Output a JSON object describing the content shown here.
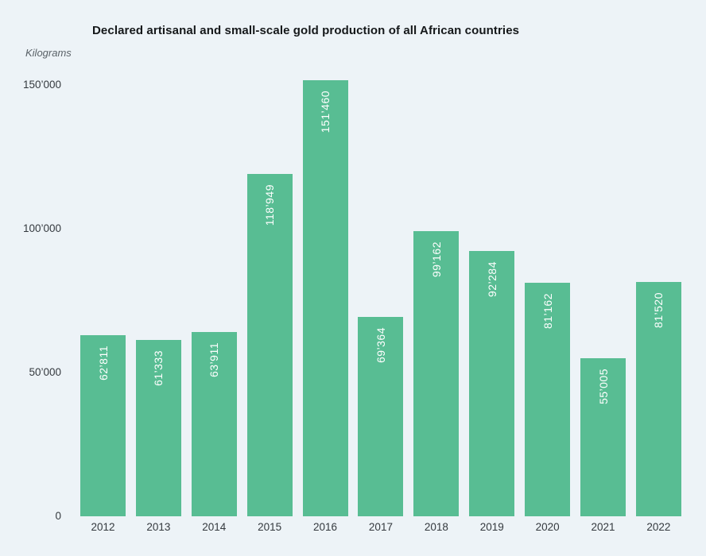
{
  "header": {
    "title": "Declared artisanal and small-scale gold production of all African countries",
    "unit_label": "Kilograms"
  },
  "colors": {
    "bar": "#58bd93",
    "background": "#edf3f7",
    "bar_label_text": "#ffffff",
    "axis_text": "#34393e",
    "title_text": "#15181a"
  },
  "chart_data": {
    "type": "bar",
    "title": "Declared artisanal and small-scale gold production of all African countries",
    "xlabel": "",
    "ylabel": "Kilograms",
    "ylim": [
      0,
      150000
    ],
    "grid": false,
    "legend": false,
    "categories": [
      "2012",
      "2013",
      "2014",
      "2015",
      "2016",
      "2017",
      "2018",
      "2019",
      "2020",
      "2021",
      "2022"
    ],
    "values": [
      62811,
      61333,
      63911,
      118949,
      151460,
      69364,
      99162,
      92284,
      81162,
      55005,
      81520
    ],
    "value_labels": [
      "62’811",
      "61’333",
      "63’911",
      "118’949",
      "151’460",
      "69’364",
      "99’162",
      "92’284",
      "81’162",
      "55’005",
      "81’520"
    ],
    "y_ticks": [
      {
        "value": 150000,
        "label": "150’000"
      },
      {
        "value": 100000,
        "label": "100’000"
      },
      {
        "value": 50000,
        "label": "50’000"
      },
      {
        "value": 0,
        "label": "0"
      }
    ]
  }
}
